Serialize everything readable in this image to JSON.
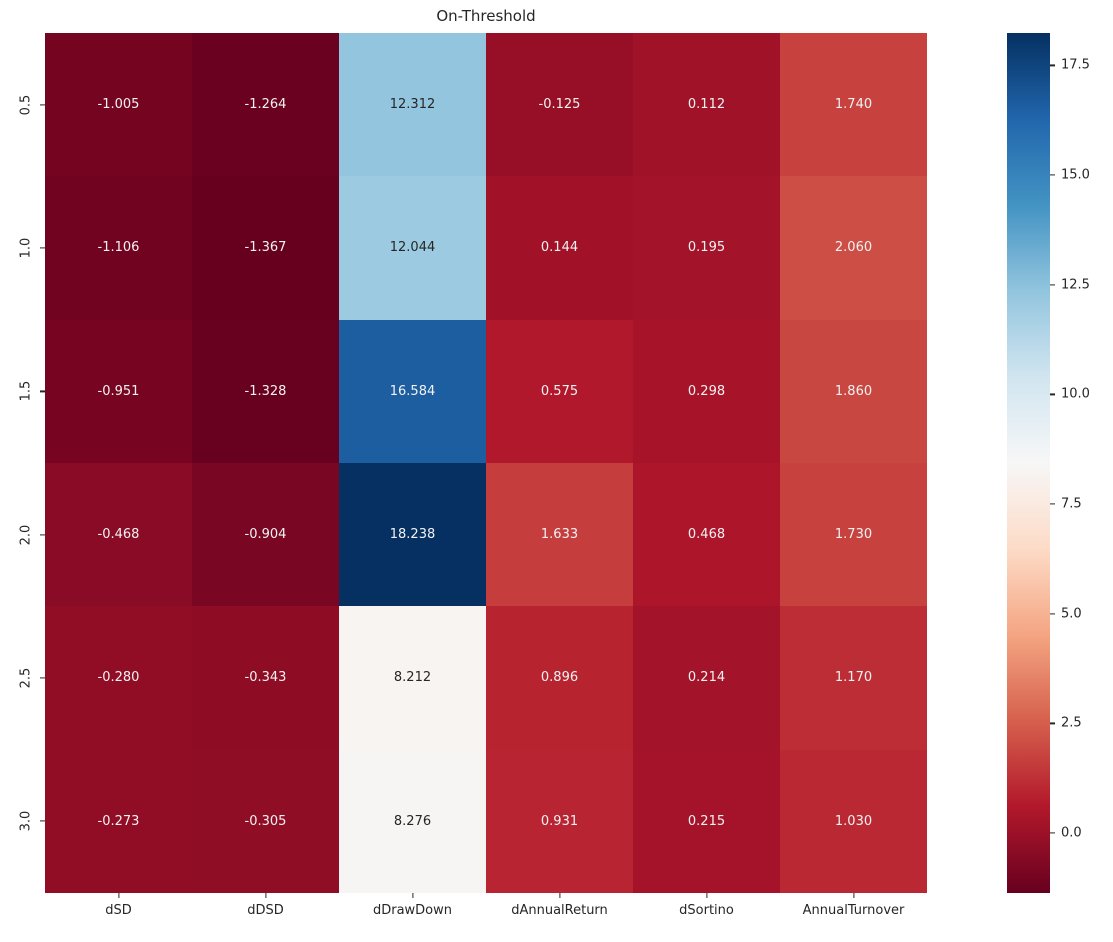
{
  "title": "On-Threshold",
  "chart_data": {
    "type": "heatmap",
    "title": "On-Threshold",
    "columns": [
      "dSD",
      "dDSD",
      "dDrawDown",
      "dAnnualReturn",
      "dSortino",
      "AnnualTurnover"
    ],
    "rows": [
      "0.5",
      "1.0",
      "1.5",
      "2.0",
      "2.5",
      "3.0"
    ],
    "values": [
      [
        -1.005,
        -1.264,
        12.312,
        -0.125,
        0.112,
        1.74
      ],
      [
        -1.106,
        -1.367,
        12.044,
        0.144,
        0.195,
        2.06
      ],
      [
        -0.951,
        -1.328,
        16.584,
        0.575,
        0.298,
        1.86
      ],
      [
        -0.468,
        -0.904,
        18.238,
        1.633,
        0.468,
        1.73
      ],
      [
        -0.28,
        -0.343,
        8.212,
        0.896,
        0.214,
        1.17
      ],
      [
        -0.273,
        -0.305,
        8.276,
        0.931,
        0.215,
        1.03
      ]
    ],
    "annotation_decimals": 3,
    "vmin": -1.367,
    "vmax": 18.238,
    "colormap": "RdBu",
    "colormap_anchors": [
      "#67001f",
      "#b2182b",
      "#d6604d",
      "#f4a582",
      "#fddbc7",
      "#f7f7f7",
      "#d1e5f0",
      "#92c5de",
      "#4393c3",
      "#2166ac",
      "#053061"
    ],
    "colorbar_ticks": [
      0.0,
      2.5,
      5.0,
      7.5,
      10.0,
      12.5,
      15.0,
      17.5
    ],
    "colorbar_tick_decimals": 1,
    "legend_position": "right-colorbar",
    "grid": false,
    "annotation_color_dark": "#262626",
    "annotation_color_light": "#f2f2f2",
    "tick_color": "#262626"
  }
}
